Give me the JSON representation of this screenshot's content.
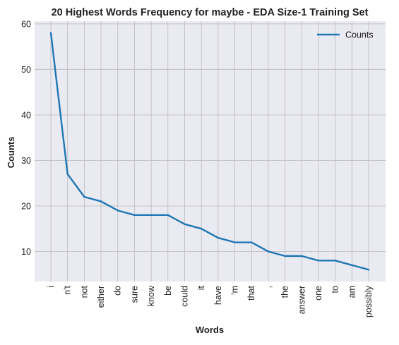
{
  "chart_data": {
    "type": "line",
    "title": "20 Highest Words Frequency for maybe - EDA Size-1 Training Set",
    "xlabel": "Words",
    "ylabel": "Counts",
    "categories": [
      "i",
      "n't",
      "not",
      "either",
      "do",
      "sure",
      "know",
      "be",
      "could",
      "it",
      "have",
      "'m",
      "that",
      ",",
      "the",
      "answer",
      "one",
      "to",
      "am",
      "possibly"
    ],
    "series": [
      {
        "name": "Counts",
        "values": [
          58,
          27,
          22,
          21,
          19,
          18,
          18,
          18,
          16,
          15,
          13,
          12,
          12,
          10,
          9,
          9,
          8,
          8,
          7,
          6
        ],
        "color": "#1f77b4"
      }
    ],
    "yticks": [
      10,
      20,
      30,
      40,
      50,
      60
    ],
    "ylim": [
      3.4,
      60.6
    ],
    "grid": true,
    "legend_position": "top-right",
    "colors": {
      "plot_background": "#eaeaf2",
      "grid": "#c0c0c0",
      "line": "#1f77b4"
    }
  }
}
